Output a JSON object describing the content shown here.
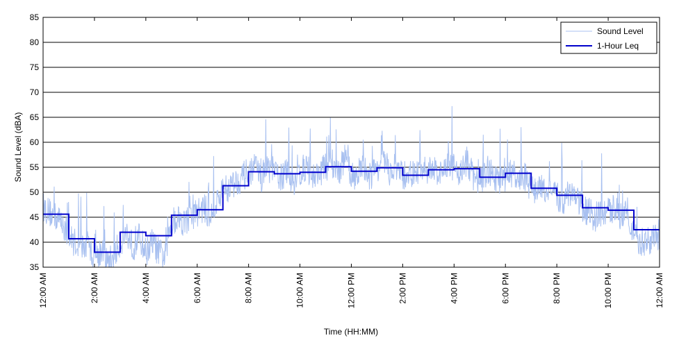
{
  "chart_data": {
    "type": "line",
    "xlabel": "Time (HH:MM)",
    "ylabel": "Sound Level (dBA)",
    "xlim": [
      0,
      24
    ],
    "ylim": [
      35,
      85
    ],
    "yticks": [
      35,
      40,
      45,
      50,
      55,
      60,
      65,
      70,
      75,
      80,
      85
    ],
    "xticks": [
      {
        "hour": 0,
        "label": "12:00 AM"
      },
      {
        "hour": 2,
        "label": "2:00 AM"
      },
      {
        "hour": 4,
        "label": "4:00 AM"
      },
      {
        "hour": 6,
        "label": "6:00 AM"
      },
      {
        "hour": 8,
        "label": "8:00 AM"
      },
      {
        "hour": 10,
        "label": "10:00 AM"
      },
      {
        "hour": 12,
        "label": "12:00 PM"
      },
      {
        "hour": 14,
        "label": "2:00 PM"
      },
      {
        "hour": 16,
        "label": "4:00 PM"
      },
      {
        "hour": 18,
        "label": "6:00 PM"
      },
      {
        "hour": 20,
        "label": "8:00 PM"
      },
      {
        "hour": 22,
        "label": "10:00 PM"
      },
      {
        "hour": 24,
        "label": "12:00 AM"
      }
    ],
    "grid": "horizontal",
    "legend_position": "top-right",
    "series": [
      {
        "name": "Sound Level",
        "color": "#a8c0f0",
        "x": [
          0,
          0.25,
          0.5,
          0.75,
          1,
          1.25,
          1.5,
          1.75,
          2,
          2.25,
          2.5,
          2.75,
          3,
          3.25,
          3.5,
          3.75,
          4,
          4.25,
          4.5,
          4.75,
          5,
          5.25,
          5.5,
          5.75,
          6,
          6.25,
          6.5,
          6.75,
          7,
          7.25,
          7.5,
          7.75,
          8,
          8.25,
          8.5,
          8.75,
          9,
          9.25,
          9.5,
          9.75,
          10,
          10.25,
          10.5,
          10.75,
          11,
          11.25,
          11.5,
          11.75,
          12,
          12.25,
          12.5,
          12.75,
          13,
          13.25,
          13.5,
          13.75,
          14,
          14.25,
          14.5,
          14.75,
          15,
          15.25,
          15.5,
          15.75,
          16,
          16.25,
          16.5,
          16.75,
          17,
          17.25,
          17.5,
          17.75,
          18,
          18.25,
          18.5,
          18.75,
          19,
          19.25,
          19.5,
          19.75,
          20,
          20.25,
          20.5,
          20.75,
          21,
          21.25,
          21.5,
          21.75,
          22,
          22.25,
          22.5,
          22.75,
          23,
          23.25,
          23.5,
          23.75,
          24
        ],
        "values": [
          47,
          46,
          45,
          44,
          41,
          40,
          39,
          39,
          37,
          38,
          36,
          37,
          40,
          42,
          39,
          41,
          38,
          40,
          38,
          37,
          44,
          45,
          44,
          45,
          46,
          47,
          45,
          48,
          50,
          51,
          52,
          53,
          54,
          55,
          53,
          55,
          54,
          53,
          54,
          52,
          54,
          55,
          53,
          54,
          55,
          56,
          54,
          57,
          53,
          54,
          55,
          53,
          55,
          56,
          54,
          55,
          53,
          54,
          53,
          55,
          54,
          55,
          53,
          56,
          55,
          54,
          56,
          53,
          52,
          54,
          53,
          52,
          53,
          54,
          52,
          53,
          51,
          50,
          51,
          50,
          49,
          48,
          50,
          49,
          47,
          46,
          45,
          46,
          46,
          47,
          45,
          47,
          41,
          40,
          40,
          41,
          40
        ]
      },
      {
        "name": "1-Hour Leq",
        "color": "#0000cc",
        "x": [
          0,
          1,
          2,
          3,
          4,
          5,
          6,
          7,
          8,
          9,
          10,
          11,
          12,
          13,
          14,
          15,
          16,
          17,
          18,
          19,
          20,
          21,
          22,
          23
        ],
        "values": [
          45.6,
          40.7,
          38.0,
          42.0,
          41.3,
          45.4,
          46.5,
          51.3,
          54.1,
          53.7,
          54.0,
          55.1,
          54.2,
          54.9,
          53.4,
          54.5,
          54.7,
          53.0,
          53.8,
          50.8,
          49.4,
          46.9,
          46.4,
          42.5
        ]
      }
    ]
  }
}
